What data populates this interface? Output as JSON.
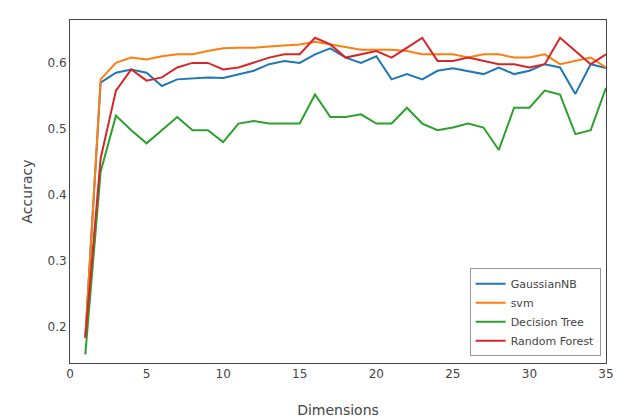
{
  "chart_data": {
    "type": "line",
    "xlabel": "Dimensions",
    "ylabel": "Accuracy",
    "x": [
      1,
      2,
      3,
      4,
      5,
      6,
      7,
      8,
      9,
      10,
      11,
      12,
      13,
      14,
      15,
      16,
      17,
      18,
      19,
      20,
      21,
      22,
      23,
      24,
      25,
      26,
      27,
      28,
      29,
      30,
      31,
      32,
      33,
      34,
      35
    ],
    "series": [
      {
        "name": "GaussianNB",
        "values": [
          0.185,
          0.57,
          0.585,
          0.59,
          0.585,
          0.565,
          0.575,
          0.577,
          0.578,
          0.577,
          0.582,
          0.588,
          0.598,
          0.603,
          0.6,
          0.613,
          0.622,
          0.608,
          0.6,
          0.61,
          0.575,
          0.583,
          0.575,
          0.588,
          0.592,
          0.588,
          0.583,
          0.593,
          0.583,
          0.588,
          0.598,
          0.593,
          0.553,
          0.598,
          0.592
        ]
      },
      {
        "name": "svm",
        "values": [
          0.183,
          0.575,
          0.6,
          0.608,
          0.605,
          0.61,
          0.613,
          0.613,
          0.618,
          0.622,
          0.623,
          0.623,
          0.625,
          0.626,
          0.628,
          0.632,
          0.628,
          0.623,
          0.62,
          0.62,
          0.62,
          0.618,
          0.613,
          0.613,
          0.613,
          0.608,
          0.613,
          0.613,
          0.608,
          0.608,
          0.613,
          0.598,
          0.603,
          0.608,
          0.593
        ]
      },
      {
        "name": "Decision Tree",
        "values": [
          0.158,
          0.435,
          0.52,
          0.498,
          0.478,
          0.498,
          0.518,
          0.498,
          0.498,
          0.48,
          0.508,
          0.512,
          0.508,
          0.508,
          0.508,
          0.552,
          0.518,
          0.518,
          0.522,
          0.508,
          0.508,
          0.532,
          0.508,
          0.498,
          0.502,
          0.508,
          0.502,
          0.468,
          0.532,
          0.532,
          0.558,
          0.552,
          0.492,
          0.498,
          0.562
        ]
      },
      {
        "name": "Random Forest",
        "values": [
          0.183,
          0.455,
          0.558,
          0.59,
          0.573,
          0.578,
          0.593,
          0.6,
          0.6,
          0.59,
          0.593,
          0.6,
          0.608,
          0.613,
          0.613,
          0.638,
          0.628,
          0.608,
          0.613,
          0.618,
          0.608,
          0.623,
          0.638,
          0.603,
          0.603,
          0.608,
          0.603,
          0.598,
          0.598,
          0.593,
          0.598,
          0.638,
          0.618,
          0.598,
          0.613
        ]
      }
    ],
    "xlim": [
      0,
      35
    ],
    "ylim": [
      0.145,
      0.665
    ],
    "xticks": [
      0,
      5,
      10,
      15,
      20,
      25,
      30,
      35
    ],
    "yticks": [
      0.2,
      0.3,
      0.4,
      0.5,
      0.6
    ],
    "grid": false,
    "legend": "lower right"
  }
}
